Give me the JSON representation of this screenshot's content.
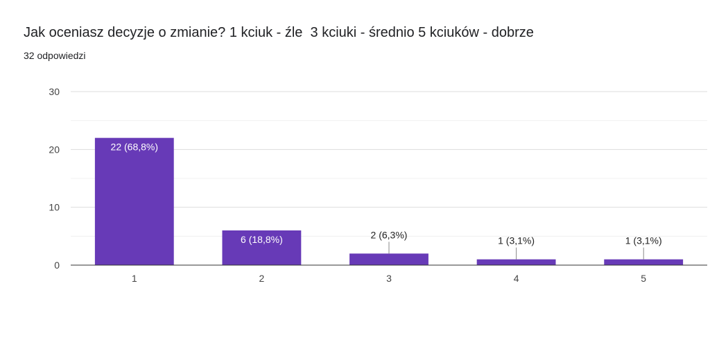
{
  "header": {
    "title": "Jak oceniasz decyzje o zmianie? 1 kciuk - źle  3 kciuki - średnio 5 kciuków - dobrze",
    "subtitle": "32 odpowiedzi"
  },
  "chart_data": {
    "type": "bar",
    "categories": [
      "1",
      "2",
      "3",
      "4",
      "5"
    ],
    "values": [
      22,
      6,
      2,
      1,
      1
    ],
    "data_labels": [
      "22 (68,8%)",
      "6 (18,8%)",
      "2 (6,3%)",
      "1 (3,1%)",
      "1 (3,1%)"
    ],
    "ylim": [
      0,
      30
    ],
    "yticks": [
      0,
      10,
      20,
      30
    ],
    "grid": true,
    "bar_color": "#673ab7"
  }
}
